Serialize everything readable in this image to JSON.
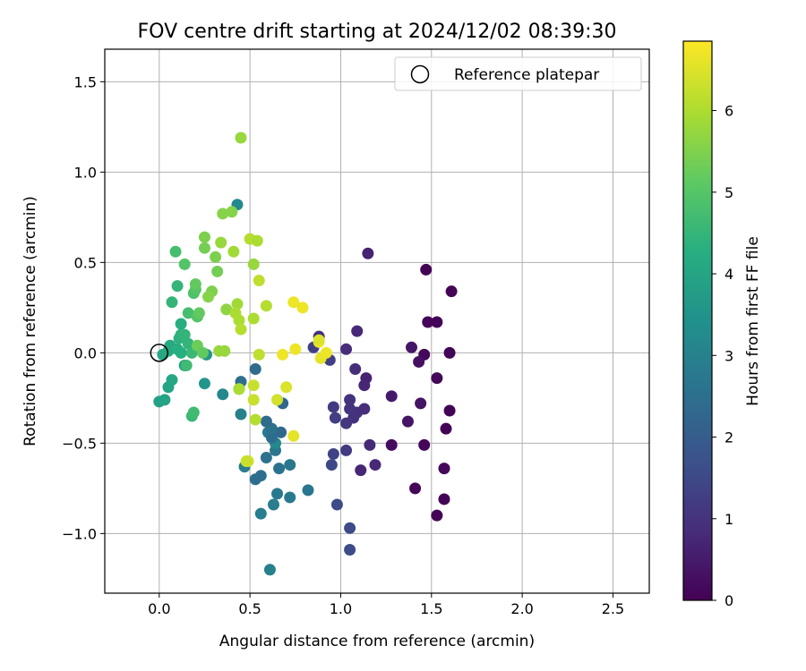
{
  "chart_data": {
    "type": "scatter",
    "title": "FOV centre drift starting at 2024/12/02 08:39:30",
    "xlabel": "Angular distance from reference (arcmin)",
    "ylabel": "Rotation from reference (arcmin)",
    "xlim": [
      -0.3,
      2.7
    ],
    "ylim": [
      -1.33,
      1.68
    ],
    "x_ticks": [
      0.0,
      0.5,
      1.0,
      1.5,
      2.0,
      2.5
    ],
    "y_ticks": [
      -1.0,
      -0.5,
      0.0,
      0.5,
      1.0,
      1.5
    ],
    "x_tick_labels": [
      "0.0",
      "0.5",
      "1.0",
      "1.5",
      "2.0",
      "2.5"
    ],
    "y_tick_labels": [
      "−1.0",
      "−0.5",
      "0.0",
      "0.5",
      "1.0",
      "1.5"
    ],
    "grid": true,
    "legend": {
      "position": "top-right",
      "entries": [
        "Reference platepar"
      ]
    },
    "reference_point": {
      "x": 0.0,
      "y": 0.0
    },
    "colorbar": {
      "label": "Hours from first FF file",
      "range": [
        0,
        6.85
      ],
      "ticks": [
        0,
        1,
        2,
        3,
        4,
        5,
        6
      ],
      "tick_labels": [
        "0",
        "1",
        "2",
        "3",
        "4",
        "5",
        "6"
      ],
      "colormap": "viridis"
    },
    "points": [
      {
        "x": 1.47,
        "y": 0.46,
        "h": 0.05
      },
      {
        "x": 1.61,
        "y": 0.34,
        "h": 0.05
      },
      {
        "x": 1.48,
        "y": 0.17,
        "h": 0.1
      },
      {
        "x": 1.53,
        "y": 0.17,
        "h": 0.08
      },
      {
        "x": 1.6,
        "y": 0.0,
        "h": 0.05
      },
      {
        "x": 1.46,
        "y": -0.01,
        "h": 0.12
      },
      {
        "x": 1.53,
        "y": -0.14,
        "h": 0.12
      },
      {
        "x": 1.6,
        "y": -0.32,
        "h": 0.05
      },
      {
        "x": 1.58,
        "y": -0.42,
        "h": 0.05
      },
      {
        "x": 1.46,
        "y": -0.51,
        "h": 0.1
      },
      {
        "x": 1.57,
        "y": -0.64,
        "h": 0.15
      },
      {
        "x": 1.57,
        "y": -0.81,
        "h": 0.05
      },
      {
        "x": 1.53,
        "y": -0.9,
        "h": 0.05
      },
      {
        "x": 1.41,
        "y": -0.75,
        "h": 0.1
      },
      {
        "x": 1.28,
        "y": -0.51,
        "h": 0.2
      },
      {
        "x": 1.43,
        "y": -0.05,
        "h": 0.3
      },
      {
        "x": 1.39,
        "y": 0.03,
        "h": 0.4
      },
      {
        "x": 1.44,
        "y": -0.28,
        "h": 0.35
      },
      {
        "x": 1.37,
        "y": -0.38,
        "h": 0.4
      },
      {
        "x": 1.28,
        "y": -0.24,
        "h": 0.5
      },
      {
        "x": 1.15,
        "y": 0.55,
        "h": 0.7
      },
      {
        "x": 1.09,
        "y": 0.12,
        "h": 0.8
      },
      {
        "x": 1.03,
        "y": 0.02,
        "h": 0.9
      },
      {
        "x": 1.14,
        "y": -0.14,
        "h": 0.7
      },
      {
        "x": 1.13,
        "y": -0.18,
        "h": 0.75
      },
      {
        "x": 1.08,
        "y": -0.09,
        "h": 0.9
      },
      {
        "x": 1.16,
        "y": -0.51,
        "h": 0.8
      },
      {
        "x": 1.19,
        "y": -0.62,
        "h": 0.8
      },
      {
        "x": 1.11,
        "y": -0.65,
        "h": 0.75
      },
      {
        "x": 1.13,
        "y": -0.31,
        "h": 0.9
      },
      {
        "x": 1.09,
        "y": -0.33,
        "h": 0.95
      },
      {
        "x": 1.07,
        "y": -0.36,
        "h": 1.0
      },
      {
        "x": 1.05,
        "y": -0.26,
        "h": 1.05
      },
      {
        "x": 1.03,
        "y": -0.39,
        "h": 1.1
      },
      {
        "x": 1.05,
        "y": -0.31,
        "h": 1.05
      },
      {
        "x": 1.03,
        "y": -0.54,
        "h": 1.2
      },
      {
        "x": 0.96,
        "y": -0.3,
        "h": 1.2
      },
      {
        "x": 0.97,
        "y": -0.36,
        "h": 1.3
      },
      {
        "x": 0.96,
        "y": -0.56,
        "h": 1.4
      },
      {
        "x": 0.95,
        "y": -0.62,
        "h": 1.5
      },
      {
        "x": 0.98,
        "y": -0.84,
        "h": 1.6
      },
      {
        "x": 1.05,
        "y": -0.97,
        "h": 1.6
      },
      {
        "x": 1.05,
        "y": -1.09,
        "h": 1.6
      },
      {
        "x": 0.88,
        "y": 0.09,
        "h": 1.0
      },
      {
        "x": 0.85,
        "y": 0.03,
        "h": 1.3
      },
      {
        "x": 0.94,
        "y": -0.04,
        "h": 1.3
      },
      {
        "x": 0.61,
        "y": -1.2,
        "h": 3.0
      },
      {
        "x": 0.56,
        "y": -0.89,
        "h": 2.9
      },
      {
        "x": 0.63,
        "y": -0.84,
        "h": 2.9
      },
      {
        "x": 0.65,
        "y": -0.78,
        "h": 2.8
      },
      {
        "x": 0.72,
        "y": -0.8,
        "h": 2.8
      },
      {
        "x": 0.82,
        "y": -0.76,
        "h": 2.7
      },
      {
        "x": 0.72,
        "y": -0.62,
        "h": 2.7
      },
      {
        "x": 0.66,
        "y": -0.64,
        "h": 2.6
      },
      {
        "x": 0.56,
        "y": -0.68,
        "h": 2.5
      },
      {
        "x": 0.53,
        "y": -0.7,
        "h": 2.5
      },
      {
        "x": 0.47,
        "y": -0.63,
        "h": 2.9
      },
      {
        "x": 0.59,
        "y": -0.58,
        "h": 2.6
      },
      {
        "x": 0.64,
        "y": -0.54,
        "h": 2.7
      },
      {
        "x": 0.64,
        "y": -0.5,
        "h": 3.2
      },
      {
        "x": 0.6,
        "y": -0.44,
        "h": 2.8
      },
      {
        "x": 0.67,
        "y": -0.44,
        "h": 2.3
      },
      {
        "x": 0.62,
        "y": -0.47,
        "h": 2.5
      },
      {
        "x": 0.62,
        "y": -0.42,
        "h": 2.6
      },
      {
        "x": 0.59,
        "y": -0.38,
        "h": 2.4
      },
      {
        "x": 0.68,
        "y": -0.28,
        "h": 2.3
      },
      {
        "x": 0.45,
        "y": -0.34,
        "h": 3.0
      },
      {
        "x": 0.45,
        "y": -0.16,
        "h": 2.5
      },
      {
        "x": 0.44,
        "y": -0.2,
        "h": 2.8
      },
      {
        "x": 0.35,
        "y": -0.23,
        "h": 3.2
      },
      {
        "x": 0.53,
        "y": -0.09,
        "h": 2.4
      },
      {
        "x": 0.43,
        "y": 0.82,
        "h": 3.2
      },
      {
        "x": 0.26,
        "y": -0.01,
        "h": 3.6
      },
      {
        "x": 0.25,
        "y": -0.17,
        "h": 3.6
      },
      {
        "x": 0.14,
        "y": -0.07,
        "h": 3.8
      },
      {
        "x": 0.0,
        "y": -0.27,
        "h": 3.9
      },
      {
        "x": 0.03,
        "y": -0.26,
        "h": 4.0
      },
      {
        "x": 0.05,
        "y": -0.19,
        "h": 4.0
      },
      {
        "x": 0.07,
        "y": -0.15,
        "h": 4.1
      },
      {
        "x": 0.02,
        "y": -0.01,
        "h": 4.1
      },
      {
        "x": 0.05,
        "y": 0.01,
        "h": 4.2
      },
      {
        "x": 0.06,
        "y": 0.04,
        "h": 4.2
      },
      {
        "x": 0.1,
        "y": 0.02,
        "h": 4.3
      },
      {
        "x": 0.12,
        "y": 0.0,
        "h": 4.3
      },
      {
        "x": 0.11,
        "y": 0.08,
        "h": 4.4
      },
      {
        "x": 0.12,
        "y": 0.1,
        "h": 4.4
      },
      {
        "x": 0.14,
        "y": 0.1,
        "h": 4.5
      },
      {
        "x": 0.12,
        "y": 0.16,
        "h": 4.3
      },
      {
        "x": 0.16,
        "y": 0.05,
        "h": 4.5
      },
      {
        "x": 0.18,
        "y": 0.0,
        "h": 4.6
      },
      {
        "x": 0.18,
        "y": -0.35,
        "h": 4.6
      },
      {
        "x": 0.19,
        "y": -0.33,
        "h": 4.7
      },
      {
        "x": 0.15,
        "y": -0.07,
        "h": 4.7
      },
      {
        "x": 0.07,
        "y": 0.28,
        "h": 4.5
      },
      {
        "x": 0.1,
        "y": 0.37,
        "h": 4.5
      },
      {
        "x": 0.09,
        "y": 0.56,
        "h": 4.8
      },
      {
        "x": 0.14,
        "y": 0.49,
        "h": 5.0
      },
      {
        "x": 0.16,
        "y": 0.22,
        "h": 4.8
      },
      {
        "x": 0.19,
        "y": 0.33,
        "h": 4.9
      },
      {
        "x": 0.2,
        "y": 0.35,
        "h": 5.0
      },
      {
        "x": 0.2,
        "y": 0.38,
        "h": 5.2
      },
      {
        "x": 0.21,
        "y": 0.2,
        "h": 5.0
      },
      {
        "x": 0.22,
        "y": 0.22,
        "h": 5.2
      },
      {
        "x": 0.21,
        "y": 0.04,
        "h": 5.3
      },
      {
        "x": 0.24,
        "y": 0.0,
        "h": 5.2
      },
      {
        "x": 0.25,
        "y": 0.58,
        "h": 5.4
      },
      {
        "x": 0.25,
        "y": 0.64,
        "h": 5.5
      },
      {
        "x": 0.29,
        "y": 0.34,
        "h": 5.5
      },
      {
        "x": 0.27,
        "y": 0.31,
        "h": 5.6
      },
      {
        "x": 0.31,
        "y": 0.53,
        "h": 5.5
      },
      {
        "x": 0.32,
        "y": 0.45,
        "h": 5.4
      },
      {
        "x": 0.33,
        "y": 0.01,
        "h": 5.8
      },
      {
        "x": 0.36,
        "y": 0.01,
        "h": 5.8
      },
      {
        "x": 0.37,
        "y": 0.24,
        "h": 5.7
      },
      {
        "x": 0.35,
        "y": 0.77,
        "h": 5.6
      },
      {
        "x": 0.4,
        "y": 0.78,
        "h": 5.6
      },
      {
        "x": 0.34,
        "y": 0.61,
        "h": 5.8
      },
      {
        "x": 0.41,
        "y": 0.56,
        "h": 5.9
      },
      {
        "x": 0.43,
        "y": 0.27,
        "h": 5.9
      },
      {
        "x": 0.42,
        "y": 0.22,
        "h": 6.0
      },
      {
        "x": 0.44,
        "y": 0.18,
        "h": 6.0
      },
      {
        "x": 0.45,
        "y": 0.13,
        "h": 6.1
      },
      {
        "x": 0.44,
        "y": -0.2,
        "h": 6.0
      },
      {
        "x": 0.52,
        "y": 0.49,
        "h": 5.8
      },
      {
        "x": 0.5,
        "y": 0.63,
        "h": 6.1
      },
      {
        "x": 0.54,
        "y": 0.62,
        "h": 6.0
      },
      {
        "x": 0.55,
        "y": 0.4,
        "h": 6.2
      },
      {
        "x": 0.59,
        "y": 0.26,
        "h": 6.1
      },
      {
        "x": 0.52,
        "y": 0.19,
        "h": 6.0
      },
      {
        "x": 0.55,
        "y": -0.01,
        "h": 6.2
      },
      {
        "x": 0.45,
        "y": 1.19,
        "h": 5.8
      },
      {
        "x": 0.53,
        "y": -0.37,
        "h": 6.1
      },
      {
        "x": 0.52,
        "y": -0.26,
        "h": 6.3
      },
      {
        "x": 0.52,
        "y": -0.18,
        "h": 6.3
      },
      {
        "x": 0.49,
        "y": -0.6,
        "h": 6.4
      },
      {
        "x": 0.48,
        "y": -0.6,
        "h": 6.3
      },
      {
        "x": 0.65,
        "y": -0.26,
        "h": 6.4
      },
      {
        "x": 0.7,
        "y": -0.19,
        "h": 6.5
      },
      {
        "x": 0.74,
        "y": -0.46,
        "h": 6.6
      },
      {
        "x": 0.68,
        "y": -0.01,
        "h": 6.7
      },
      {
        "x": 0.75,
        "y": 0.02,
        "h": 6.7
      },
      {
        "x": 0.74,
        "y": 0.28,
        "h": 6.7
      },
      {
        "x": 0.79,
        "y": 0.25,
        "h": 6.7
      },
      {
        "x": 0.88,
        "y": 0.06,
        "h": 6.8
      },
      {
        "x": 0.89,
        "y": -0.03,
        "h": 6.6
      },
      {
        "x": 0.92,
        "y": 0.0,
        "h": 6.7
      },
      {
        "x": 0.88,
        "y": 0.07,
        "h": 6.5
      }
    ]
  }
}
